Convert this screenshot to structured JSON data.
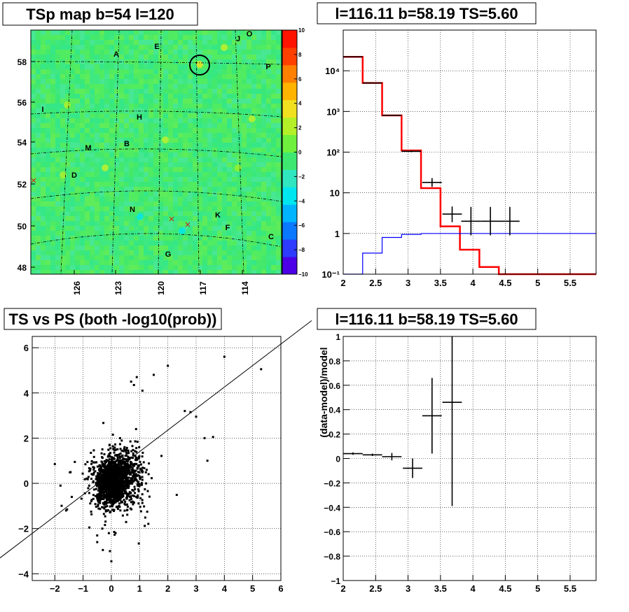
{
  "chart_data": [
    {
      "type": "heatmap",
      "title": "TSp map b=54 l=120",
      "x_tick_labels": [
        "126",
        "123",
        "120",
        "117",
        "114"
      ],
      "y_tick_labels": [
        "48",
        "50",
        "52",
        "54",
        "56",
        "58"
      ],
      "colorbar": {
        "range": [
          -10,
          10
        ],
        "tick_labels": [
          "10",
          "8",
          "6",
          "4",
          "2",
          "0",
          "−2",
          "−4",
          "−6",
          "−8",
          "−10"
        ],
        "colors": [
          "#4b00e6",
          "#2e3cff",
          "#0a78ff",
          "#00b4ff",
          "#00e6f0",
          "#2fe6c0",
          "#3ee870",
          "#6ef03c",
          "#b4f028",
          "#f0e020",
          "#ffb400",
          "#ff8000",
          "#ff4000",
          "#ff1400"
        ]
      },
      "background_color": "#3ee870",
      "source_labels": [
        "A",
        "B",
        "C",
        "D",
        "E",
        "F",
        "G",
        "H",
        "I",
        "J",
        "K",
        "M",
        "N",
        "O",
        "P"
      ]
    },
    {
      "type": "line",
      "title": "l=116.11 b=58.19 TS=5.60",
      "x_range": [
        2,
        5.9
      ],
      "y_range": [
        0.1,
        100000
      ],
      "log_y": true,
      "grid": true,
      "x_tick_labels": [
        "2",
        "2.5",
        "3",
        "3.5",
        "4",
        "4.5",
        "5",
        "5.5"
      ],
      "y_tick_labels": [
        "10⁻¹",
        "1",
        "10",
        "10²",
        "10³",
        "10⁴"
      ],
      "series": [
        {
          "color": "#ff0000",
          "edges": [
            2.0,
            2.3,
            2.6,
            2.9,
            3.2,
            3.5,
            3.8,
            4.1,
            4.4,
            5.9
          ],
          "values": [
            22000,
            5000,
            800,
            110,
            13,
            1.5,
            0.4,
            0.15,
            0.1
          ]
        },
        {
          "color": "#0000ff",
          "edges": [
            2.0,
            2.3,
            2.6,
            2.9,
            3.2,
            3.5,
            5.9
          ],
          "values": [
            0.1,
            0.33,
            0.8,
            0.95,
            1.0,
            1.0
          ]
        }
      ],
      "points": [
        {
          "x": 2.15,
          "xerr": 0.15,
          "y": 22000,
          "ylo": 21500,
          "yhi": 22500
        },
        {
          "x": 2.45,
          "xerr": 0.15,
          "y": 5000,
          "ylo": 4900,
          "yhi": 5100
        },
        {
          "x": 2.75,
          "xerr": 0.15,
          "y": 800,
          "ylo": 780,
          "yhi": 820
        },
        {
          "x": 3.05,
          "xerr": 0.15,
          "y": 105,
          "ylo": 100,
          "yhi": 110
        },
        {
          "x": 3.37,
          "xerr": 0.15,
          "y": 18,
          "ylo": 14,
          "yhi": 23
        },
        {
          "x": 3.68,
          "xerr": 0.15,
          "y": 3,
          "ylo": 1.9,
          "yhi": 4.6
        },
        {
          "x": 3.97,
          "xerr": 0.15,
          "y": 2,
          "ylo": 0.9,
          "yhi": 4.5
        },
        {
          "x": 4.27,
          "xerr": 0.15,
          "y": 2,
          "ylo": 0.9,
          "yhi": 4.5
        },
        {
          "x": 4.57,
          "xerr": 0.15,
          "y": 2,
          "ylo": 0.9,
          "yhi": 4.5
        }
      ]
    },
    {
      "type": "scatter",
      "title": "TS vs PS (both -log10(prob))",
      "x_range": [
        -2.8,
        6.0
      ],
      "y_range": [
        -4.3,
        6.5
      ],
      "grid": true,
      "x_tick_labels": [
        "−2",
        "−1",
        "0",
        "1",
        "2",
        "3",
        "4",
        "5",
        "6"
      ],
      "y_tick_labels": [
        "−4",
        "−2",
        "0",
        "2",
        "4",
        "6"
      ],
      "reference_line": {
        "slope": 1,
        "intercept": 0
      },
      "outliers": [
        [
          4.0,
          5.6
        ],
        [
          5.3,
          5.05
        ],
        [
          2.0,
          5.2
        ],
        [
          1.5,
          4.8
        ],
        [
          0.9,
          4.7
        ],
        [
          0.7,
          4.5
        ],
        [
          0.8,
          4.35
        ],
        [
          1.1,
          4.1
        ],
        [
          2.6,
          3.2
        ],
        [
          2.8,
          3.15
        ],
        [
          3.0,
          2.95
        ],
        [
          3.3,
          2.0
        ],
        [
          3.4,
          1.0
        ],
        [
          3.6,
          2.05
        ],
        [
          -2.0,
          0.85
        ],
        [
          -1.8,
          -0.1
        ],
        [
          -1.6,
          -1.2
        ],
        [
          -1.4,
          -0.6
        ],
        [
          0.0,
          -3.45
        ],
        [
          -0.3,
          -2.95
        ],
        [
          -0.5,
          -2.6
        ],
        [
          0.15,
          -2.2
        ],
        [
          -0.05,
          -3.0
        ]
      ],
      "cloud_description_points": 1800
    },
    {
      "type": "scatter",
      "title": "l=116.11 b=58.19 TS=5.60",
      "ylabel": "(data-model)/model",
      "x_range": [
        2,
        5.9
      ],
      "y_range": [
        -1,
        1
      ],
      "grid": true,
      "x_tick_labels": [
        "2",
        "2.5",
        "3",
        "3.5",
        "4",
        "4.5",
        "5",
        "5.5"
      ],
      "y_tick_labels": [
        "−1",
        "−0.8",
        "−0.6",
        "−0.4",
        "−0.2",
        "0",
        "0.2",
        "0.4",
        "0.6",
        "0.8",
        "1"
      ],
      "points": [
        {
          "x": 2.15,
          "xerr": 0.15,
          "y": 0.04,
          "yerr": 0.01
        },
        {
          "x": 2.45,
          "xerr": 0.15,
          "y": 0.03,
          "yerr": 0.01
        },
        {
          "x": 2.75,
          "xerr": 0.15,
          "y": 0.015,
          "yerr": 0.03
        },
        {
          "x": 3.07,
          "xerr": 0.15,
          "y": -0.08,
          "yerr": 0.08
        },
        {
          "x": 3.37,
          "xerr": 0.15,
          "y": 0.35,
          "yerr": 0.31
        },
        {
          "x": 3.68,
          "xerr": 0.15,
          "y": 0.46,
          "yerr": 0.85
        }
      ]
    }
  ]
}
